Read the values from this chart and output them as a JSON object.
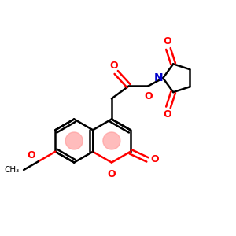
{
  "bg_color": "#ffffff",
  "bond_color": "#000000",
  "oxygen_color": "#ff0000",
  "nitrogen_color": "#0000cc",
  "aromatic_fill": "#ff9999",
  "line_width": 1.8,
  "figsize": [
    3.0,
    3.0
  ],
  "dpi": 100,
  "xlim": [
    0,
    10
  ],
  "ylim": [
    0,
    10
  ]
}
